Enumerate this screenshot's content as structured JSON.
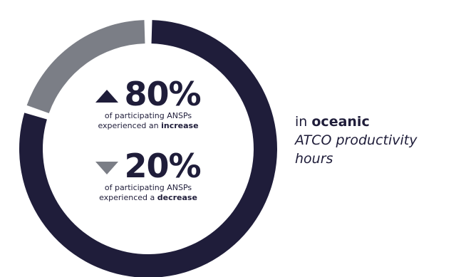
{
  "chart_data": {
    "type": "pie",
    "style": "donut",
    "categories": [
      "increase",
      "decrease"
    ],
    "values": [
      80,
      20
    ],
    "unit": "%",
    "colors": {
      "increase": "#1f1d3a",
      "decrease": "#7b7e86",
      "text": "#1f1d3a"
    },
    "stats": [
      {
        "arrow": "triangle-up-icon",
        "value_label": "80%",
        "desc_prefix": "of participating ANSPs",
        "desc_line2_prefix": "experienced an ",
        "desc_line2_bold": "increase"
      },
      {
        "arrow": "triangle-down-icon",
        "value_label": "20%",
        "desc_prefix": "of participating ANSPs",
        "desc_line2_prefix": "experienced a ",
        "desc_line2_bold": "decrease"
      }
    ]
  },
  "side_label": {
    "prefix": "in ",
    "bold": "oceanic",
    "italic_line1": "ATCO productivity",
    "italic_line2": "hours"
  }
}
